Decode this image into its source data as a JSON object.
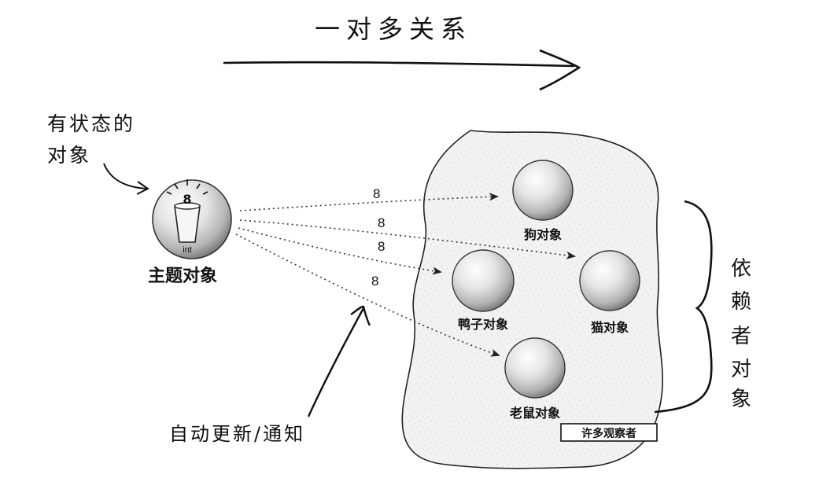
{
  "title": "一对多关系",
  "labels": {
    "stateful_object": [
      "有状态的",
      "对象"
    ],
    "dependents": [
      "依",
      "赖",
      "者",
      "对",
      "象"
    ],
    "auto_update": "自动更新/通知",
    "many_observers": "许多观察者"
  },
  "subject": {
    "label": "主题对象",
    "value": "8",
    "type": "int"
  },
  "observers": [
    {
      "label": "狗对象"
    },
    {
      "label": "鸭子对象"
    },
    {
      "label": "猫对象"
    },
    {
      "label": "老鼠对象"
    }
  ],
  "arrows": [
    {
      "to": "狗对象",
      "value": "8"
    },
    {
      "to": "猫对象",
      "value": "8"
    },
    {
      "to": "鸭子对象",
      "value": "8"
    },
    {
      "to": "老鼠对象",
      "value": "8"
    }
  ]
}
